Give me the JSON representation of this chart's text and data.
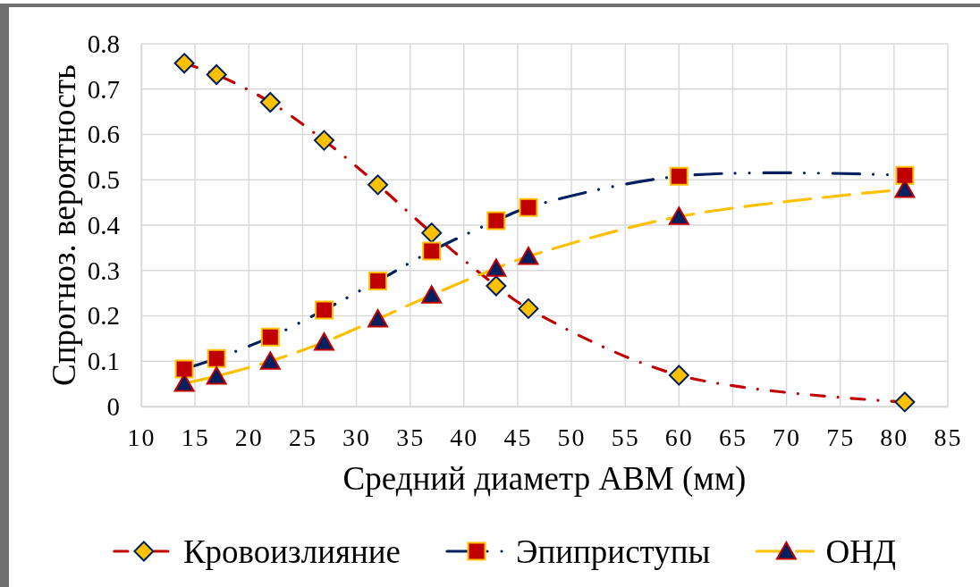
{
  "chart_data": {
    "type": "line",
    "xlabel": "Средний диаметр АВМ (мм)",
    "ylabel": "Спрогноз. вероятность",
    "x": [
      14,
      17,
      22,
      27,
      32,
      37,
      43,
      46,
      60,
      81
    ],
    "series": [
      {
        "name": "Кровоизлияние",
        "color": "#c00000",
        "marker": "diamond",
        "line_style": "dashed",
        "values": [
          0.757,
          0.732,
          0.671,
          0.587,
          0.489,
          0.383,
          0.266,
          0.216,
          0.069,
          0.01
        ]
      },
      {
        "name": "Эпиприступы",
        "color": "#002060",
        "marker": "square",
        "line_style": "dashed",
        "values": [
          0.083,
          0.106,
          0.153,
          0.213,
          0.277,
          0.343,
          0.41,
          0.439,
          0.508,
          0.51
        ]
      },
      {
        "name": "ОНД",
        "color": "#ffc000",
        "marker": "triangle",
        "line_style": "dashed",
        "values": [
          0.051,
          0.067,
          0.1,
          0.142,
          0.193,
          0.246,
          0.305,
          0.331,
          0.419,
          0.479
        ]
      }
    ],
    "xlim": [
      10,
      85
    ],
    "xticks": [
      10,
      15,
      20,
      25,
      30,
      35,
      40,
      45,
      50,
      55,
      60,
      65,
      70,
      75,
      80,
      85
    ],
    "ylim": [
      0,
      0.8
    ],
    "yticks": [
      0,
      0.1,
      0.2,
      0.3,
      0.4,
      0.5,
      0.6,
      0.7,
      0.8
    ],
    "grid": true,
    "legend": "bottom"
  }
}
